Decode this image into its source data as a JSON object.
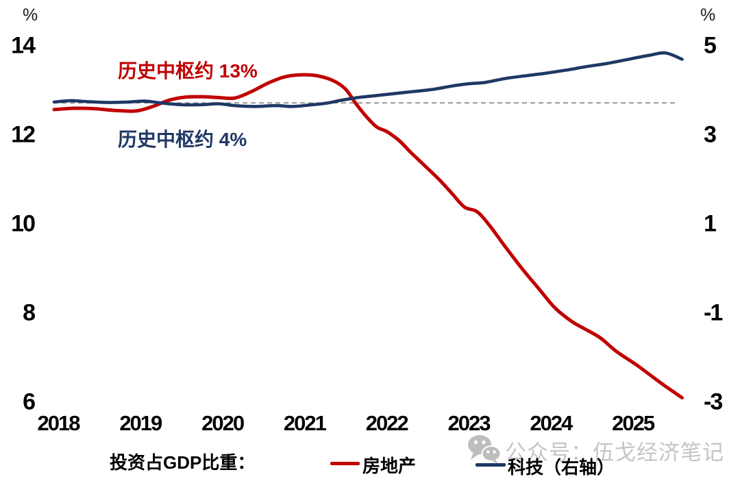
{
  "figure": {
    "left_unit": "%",
    "right_unit": "%",
    "annotations": {
      "red": "历史中枢约 13%",
      "blue": "历史中枢约 4%"
    },
    "legend": {
      "prefix": "投资占GDP比重：",
      "items": [
        {
          "label": "房地产",
          "color": "#c00000"
        },
        {
          "label": "科技（右轴）",
          "color": "#1f3864"
        }
      ]
    },
    "watermark": "公众号：伍戈经济笔记",
    "colors": {
      "red": "#c00000",
      "blue": "#1f3864",
      "dashed": "#828282",
      "watermark_gray": "#c5c5c5"
    }
  },
  "chart_data": {
    "type": "line",
    "title": "",
    "xlabel": "",
    "ylabel_left": "%",
    "ylabel_right": "%",
    "x_tick_labels": [
      "2018",
      "2019",
      "2020",
      "2021",
      "2022",
      "2023",
      "2024",
      "2025"
    ],
    "x_tick_values": [
      2018,
      2019,
      2020,
      2021,
      2022,
      2023,
      2024,
      2025
    ],
    "x_range": [
      2017.95,
      2025.6
    ],
    "left_axis": {
      "unit": "%",
      "tick_values": [
        14,
        12,
        10,
        8,
        6
      ],
      "range": [
        5.8,
        14.6
      ]
    },
    "right_axis": {
      "unit": "%",
      "tick_values": [
        5,
        3,
        1,
        -1,
        -3
      ],
      "range": [
        -3.2,
        5.6
      ]
    },
    "reference_line": {
      "style": "dashed",
      "left_value": 12.72,
      "right_value": 3.72
    },
    "grid": false,
    "legend_position": "bottom",
    "series": [
      {
        "name": "房地产",
        "axis": "left",
        "color": "#c00000",
        "points": [
          [
            2017.95,
            12.57
          ],
          [
            2018.2,
            12.6
          ],
          [
            2018.45,
            12.59
          ],
          [
            2018.7,
            12.55
          ],
          [
            2018.95,
            12.54
          ],
          [
            2019.15,
            12.64
          ],
          [
            2019.35,
            12.78
          ],
          [
            2019.55,
            12.85
          ],
          [
            2019.75,
            12.86
          ],
          [
            2019.95,
            12.84
          ],
          [
            2020.15,
            12.83
          ],
          [
            2020.35,
            12.97
          ],
          [
            2020.55,
            13.16
          ],
          [
            2020.75,
            13.3
          ],
          [
            2020.95,
            13.35
          ],
          [
            2021.15,
            13.33
          ],
          [
            2021.35,
            13.22
          ],
          [
            2021.5,
            13.03
          ],
          [
            2021.62,
            12.72
          ],
          [
            2021.75,
            12.42
          ],
          [
            2021.88,
            12.18
          ],
          [
            2022.0,
            12.08
          ],
          [
            2022.15,
            11.88
          ],
          [
            2022.3,
            11.6
          ],
          [
            2022.5,
            11.25
          ],
          [
            2022.65,
            10.98
          ],
          [
            2022.8,
            10.68
          ],
          [
            2022.95,
            10.38
          ],
          [
            2023.1,
            10.28
          ],
          [
            2023.25,
            9.98
          ],
          [
            2023.45,
            9.48
          ],
          [
            2023.65,
            9.0
          ],
          [
            2023.85,
            8.56
          ],
          [
            2024.05,
            8.12
          ],
          [
            2024.25,
            7.82
          ],
          [
            2024.4,
            7.66
          ],
          [
            2024.6,
            7.45
          ],
          [
            2024.8,
            7.14
          ],
          [
            2025.05,
            6.83
          ],
          [
            2025.35,
            6.42
          ],
          [
            2025.6,
            6.1
          ]
        ]
      },
      {
        "name": "科技（右轴）",
        "axis": "right",
        "color": "#1f3864",
        "points": [
          [
            2017.95,
            3.74
          ],
          [
            2018.15,
            3.77
          ],
          [
            2018.35,
            3.75
          ],
          [
            2018.6,
            3.73
          ],
          [
            2018.85,
            3.74
          ],
          [
            2019.05,
            3.76
          ],
          [
            2019.25,
            3.72
          ],
          [
            2019.5,
            3.68
          ],
          [
            2019.75,
            3.68
          ],
          [
            2019.95,
            3.7
          ],
          [
            2020.15,
            3.66
          ],
          [
            2020.4,
            3.64
          ],
          [
            2020.65,
            3.66
          ],
          [
            2020.85,
            3.64
          ],
          [
            2021.05,
            3.67
          ],
          [
            2021.25,
            3.71
          ],
          [
            2021.45,
            3.78
          ],
          [
            2021.65,
            3.84
          ],
          [
            2021.85,
            3.88
          ],
          [
            2022.05,
            3.92
          ],
          [
            2022.3,
            3.97
          ],
          [
            2022.55,
            4.02
          ],
          [
            2022.8,
            4.1
          ],
          [
            2023.0,
            4.15
          ],
          [
            2023.2,
            4.18
          ],
          [
            2023.45,
            4.27
          ],
          [
            2023.7,
            4.33
          ],
          [
            2023.95,
            4.39
          ],
          [
            2024.2,
            4.46
          ],
          [
            2024.45,
            4.54
          ],
          [
            2024.7,
            4.61
          ],
          [
            2024.95,
            4.7
          ],
          [
            2025.2,
            4.79
          ],
          [
            2025.4,
            4.84
          ],
          [
            2025.6,
            4.7
          ]
        ]
      }
    ]
  }
}
